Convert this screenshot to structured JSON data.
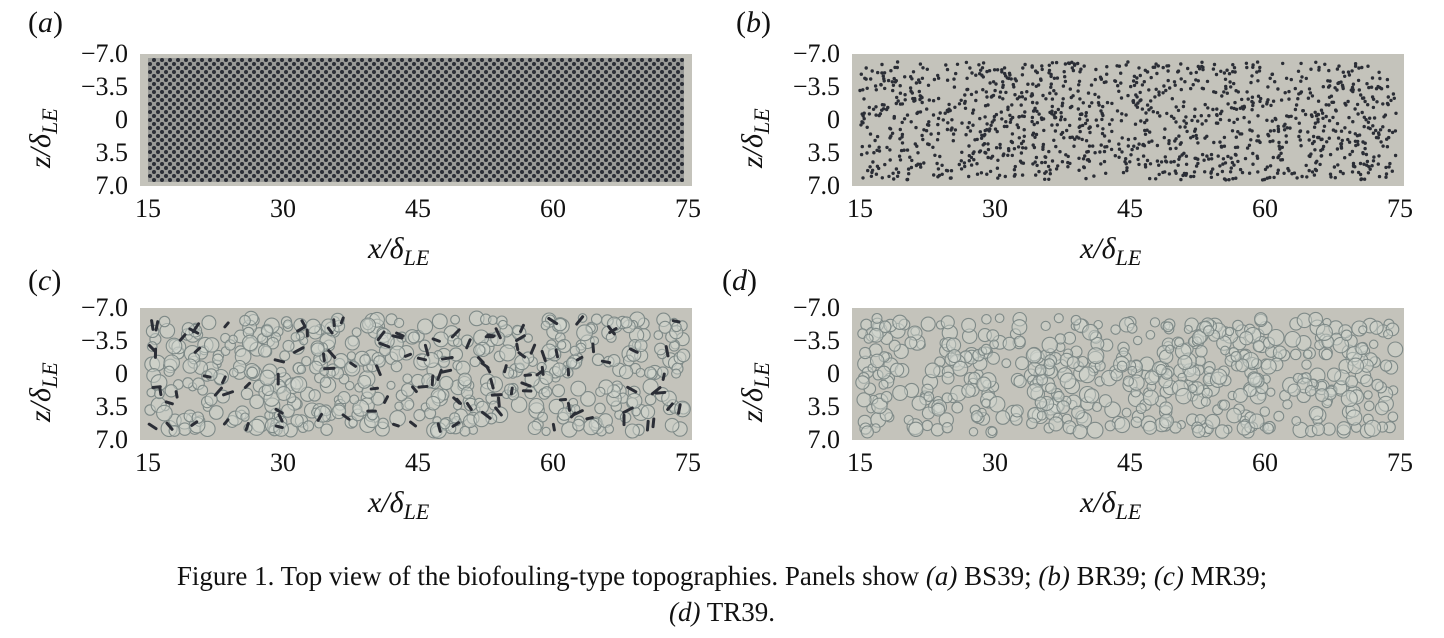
{
  "figure": {
    "panels": [
      {
        "label_open": "(",
        "label_letter": "a",
        "label_close": ")",
        "pattern": "checkerboard"
      },
      {
        "label_open": "(",
        "label_letter": "b",
        "label_close": ")",
        "pattern": "dots"
      },
      {
        "label_open": "(",
        "label_letter": "c",
        "label_close": ")",
        "pattern": "rings-and-dashes"
      },
      {
        "label_open": "(",
        "label_letter": "d",
        "label_close": ")",
        "pattern": "rings"
      }
    ],
    "y_ticks": [
      "−7.0",
      "−3.5",
      "0",
      "3.5",
      "7.0"
    ],
    "x_ticks": [
      "15",
      "30",
      "45",
      "60",
      "75"
    ],
    "x_label_main": "x/δ",
    "x_label_sub": "LE",
    "y_label_main": "z/δ",
    "y_label_sub": "LE",
    "colors": {
      "surface": "#c4c3bb",
      "roughness_dark": "#2b2e36",
      "ring_stroke": "#7f8a88",
      "ring_fill": "#d3d6d1"
    }
  },
  "caption": {
    "intro": "Figure 1.  Top view of the biofouling-type topographies. Panels show ",
    "a_letter": "(a)",
    "a_name": " BS39; ",
    "b_letter": "(b)",
    "b_name": " BR39; ",
    "c_letter": "(c)",
    "c_name": " MR39;",
    "d_letter": "(d)",
    "d_name": " TR39."
  },
  "chart_data": [
    {
      "type": "heatmap",
      "title": "",
      "xlabel": "x/δLE",
      "ylabel": "z/δLE",
      "xlim": [
        15,
        75
      ],
      "ylim": [
        -7.0,
        7.0
      ],
      "x_ticks": [
        15,
        30,
        45,
        60,
        75
      ],
      "y_ticks": [
        -7.0,
        -3.5,
        0,
        3.5,
        7.0
      ],
      "pattern": "regular checkerboard of roughness elements"
    },
    {
      "type": "scatter",
      "title": "",
      "xlabel": "x/δLE",
      "ylabel": "z/δLE",
      "xlim": [
        15,
        75
      ],
      "ylim": [
        -7.0,
        7.0
      ],
      "x_ticks": [
        15,
        30,
        45,
        60,
        75
      ],
      "y_ticks": [
        -7.0,
        -3.5,
        0,
        3.5,
        7.0
      ],
      "pattern": "randomly distributed dark dots"
    },
    {
      "type": "scatter",
      "title": "",
      "xlabel": "x/δLE",
      "ylabel": "z/δLE",
      "xlim": [
        15,
        75
      ],
      "ylim": [
        -7.0,
        7.0
      ],
      "x_ticks": [
        15,
        30,
        45,
        60,
        75
      ],
      "y_ticks": [
        -7.0,
        -3.5,
        0,
        3.5,
        7.0
      ],
      "pattern": "random grey ring clusters with dark elongated elements"
    },
    {
      "type": "scatter",
      "title": "",
      "xlabel": "x/δLE",
      "ylabel": "z/δLE",
      "xlim": [
        15,
        75
      ],
      "ylim": [
        -7.0,
        7.0
      ],
      "x_ticks": [
        15,
        30,
        45,
        60,
        75
      ],
      "y_ticks": [
        -7.0,
        -3.5,
        0,
        3.5,
        7.0
      ],
      "pattern": "random grey ring clusters"
    }
  ]
}
